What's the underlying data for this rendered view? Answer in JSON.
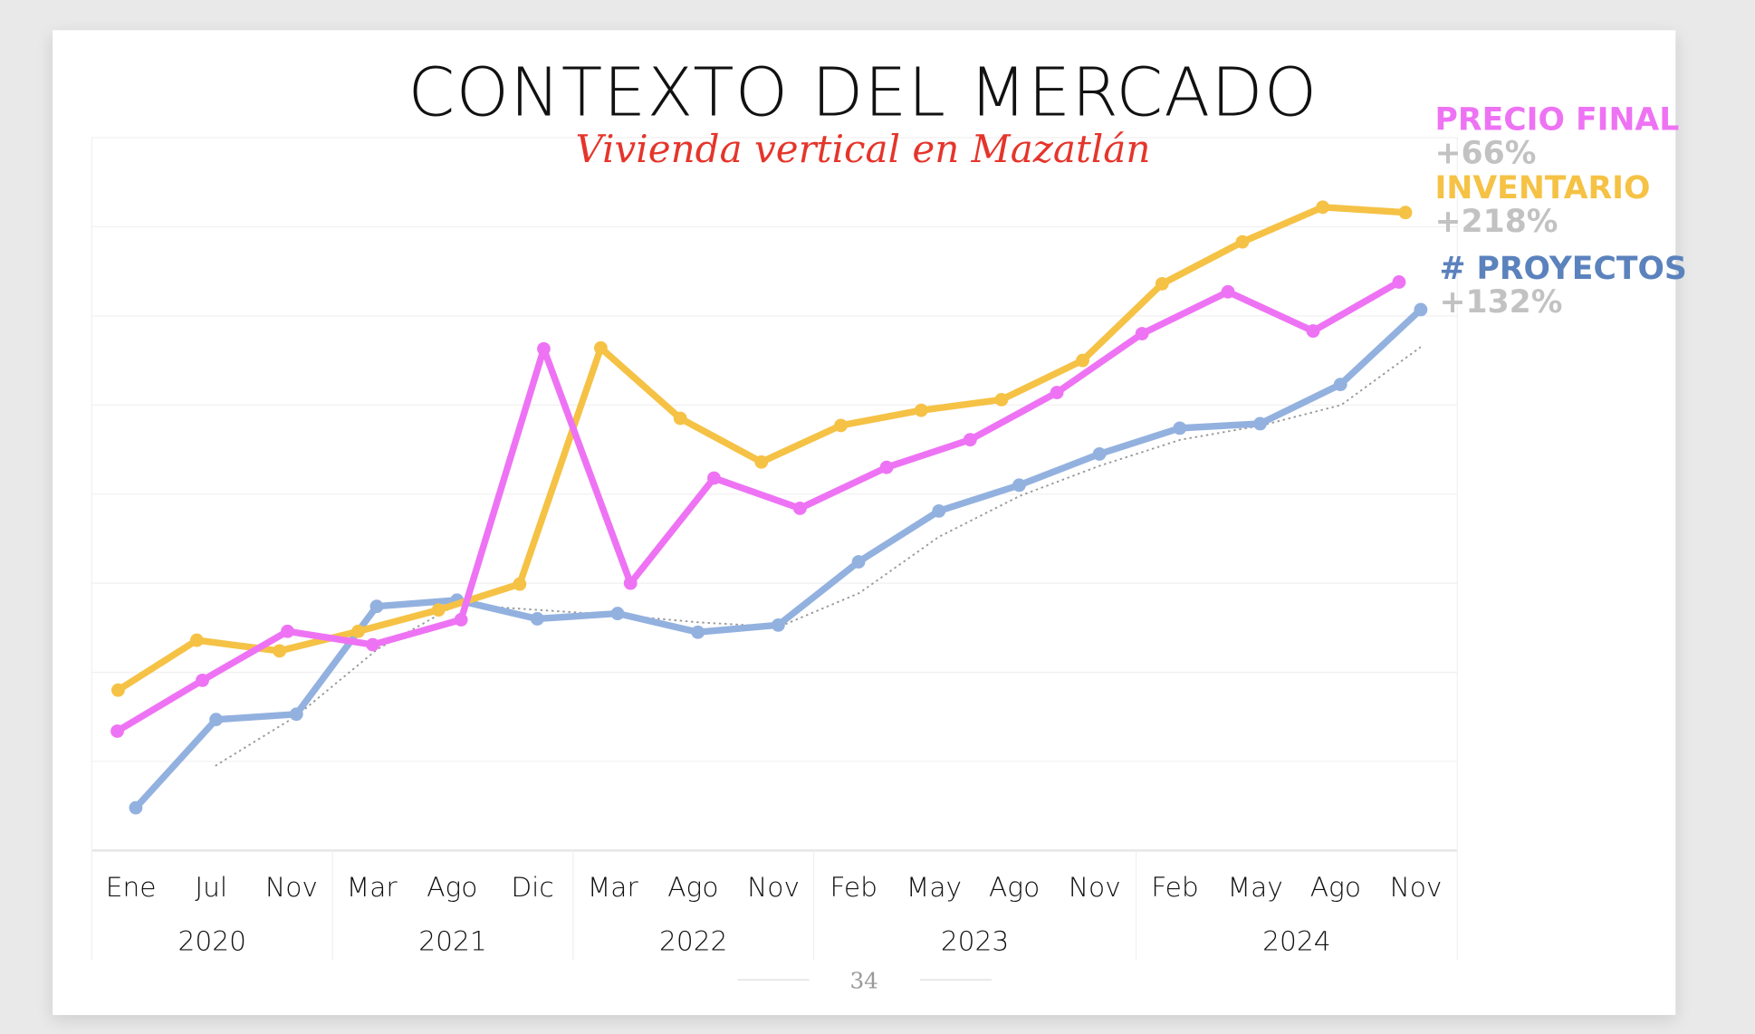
{
  "title": "CONTEXTO DEL MERCADO",
  "subtitle": "Vivienda vertical en Mazatlán",
  "page_number": "34",
  "legend": [
    {
      "label": "PRECIO FINAL",
      "change": "+66%",
      "color": "#ee73f4"
    },
    {
      "label": "INVENTARIO",
      "change": "+218%",
      "color": "#f5c245"
    },
    {
      "label": "# PROYECTOS",
      "change": "+132%",
      "color": "#5b82bd"
    }
  ],
  "chart_data": {
    "type": "line",
    "title": "CONTEXTO DEL MERCADO",
    "xlabel": "",
    "ylabel": "",
    "categories": [
      "Ene",
      "Jul",
      "Nov",
      "Mar",
      "Ago",
      "Dic",
      "Mar",
      "Ago",
      "Nov",
      "Feb",
      "May",
      "Ago",
      "Nov",
      "Feb",
      "May",
      "Ago",
      "Nov"
    ],
    "year_groups": [
      {
        "year": "2020",
        "span": 3
      },
      {
        "year": "2021",
        "span": 3
      },
      {
        "year": "2022",
        "span": 3
      },
      {
        "year": "2023",
        "span": 4
      },
      {
        "year": "2024",
        "span": 4
      }
    ],
    "ylim": [
      0,
      8
    ],
    "grid": true,
    "legend_position": "right",
    "series": [
      {
        "name": "INVENTARIO",
        "color": "#f5c245",
        "style": "solid",
        "x": [
          -0.16,
          0.82,
          1.85,
          2.83,
          3.83,
          4.84,
          5.85,
          6.84,
          7.85,
          8.84,
          9.84,
          10.84,
          11.85,
          12.84,
          13.84,
          14.84,
          15.87
        ],
        "y": [
          1.8,
          2.36,
          2.24,
          2.46,
          2.7,
          2.99,
          5.64,
          4.85,
          4.36,
          4.77,
          4.94,
          5.06,
          5.5,
          6.36,
          6.83,
          7.22,
          7.16
        ]
      },
      {
        "name": "PRECIO FINAL",
        "color": "#ee73f4",
        "style": "solid",
        "x": [
          -0.17,
          0.89,
          1.95,
          3.01,
          4.11,
          5.14,
          6.22,
          7.26,
          8.33,
          9.41,
          10.45,
          11.53,
          12.59,
          13.66,
          14.72,
          15.79
        ],
        "y": [
          1.34,
          1.91,
          2.46,
          2.31,
          2.59,
          5.63,
          3.0,
          4.18,
          3.84,
          4.3,
          4.61,
          5.14,
          5.8,
          6.27,
          5.83,
          6.38
        ]
      },
      {
        "name": "# PROYECTOS",
        "color": "#93b1df",
        "style": "solid",
        "x": [
          0.06,
          1.06,
          2.06,
          3.06,
          4.06,
          5.06,
          6.06,
          7.06,
          8.06,
          9.06,
          10.06,
          11.06,
          12.06,
          13.06,
          14.06,
          15.06,
          16.06
        ],
        "y": [
          0.48,
          1.47,
          1.53,
          2.74,
          2.81,
          2.6,
          2.66,
          2.45,
          2.53,
          3.24,
          3.81,
          4.1,
          4.45,
          4.74,
          4.79,
          5.23,
          6.07
        ]
      },
      {
        "name": "# PROYECTOS tendencia",
        "color": "#999999",
        "style": "dotted",
        "x": [
          1.05,
          2.06,
          3.07,
          4.06,
          5.07,
          6.08,
          7.08,
          8.07,
          9.07,
          10.06,
          11.07,
          12.07,
          13.07,
          14.08,
          15.07,
          16.06
        ],
        "y": [
          0.95,
          1.51,
          2.26,
          2.76,
          2.7,
          2.64,
          2.56,
          2.51,
          2.89,
          3.52,
          3.98,
          4.32,
          4.61,
          4.77,
          5.0,
          5.65
        ]
      }
    ]
  }
}
